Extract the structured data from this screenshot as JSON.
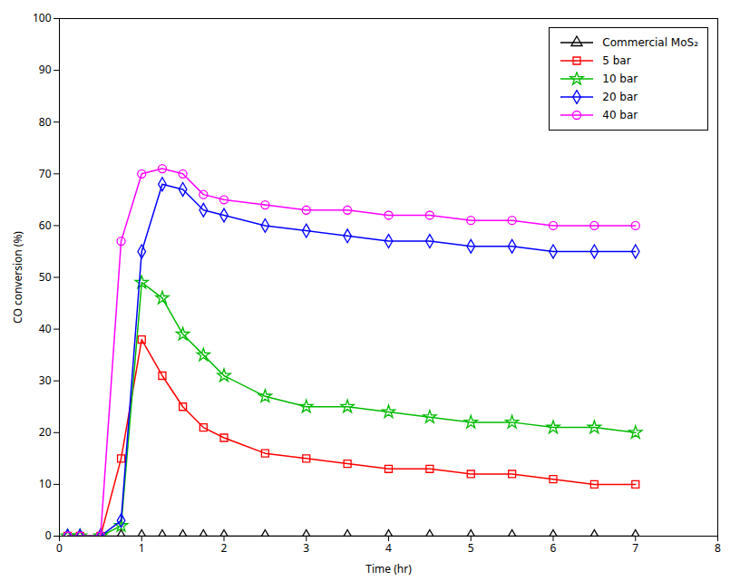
{
  "chart_data": {
    "type": "line",
    "xlabel": "Time (hr)",
    "ylabel": "CO conversion (%)",
    "xlim": [
      0,
      8
    ],
    "ylim": [
      0,
      100
    ],
    "xticks": [
      0,
      1,
      2,
      3,
      4,
      5,
      6,
      7,
      8
    ],
    "yticks": [
      0,
      10,
      20,
      30,
      40,
      50,
      60,
      70,
      80,
      90,
      100
    ],
    "grid": false,
    "legend": "upper right",
    "x": [
      0.1,
      0.25,
      0.5,
      0.75,
      1.0,
      1.25,
      1.5,
      1.75,
      2.0,
      2.5,
      3.0,
      3.5,
      4.0,
      4.5,
      5.0,
      5.5,
      6.0,
      6.5,
      7.0
    ],
    "series": [
      {
        "name": "Commercial MoS₂",
        "color": "#000000",
        "marker": "triangle",
        "values": [
          0,
          0,
          0,
          0,
          0,
          0,
          0,
          0,
          0,
          0,
          0,
          0,
          0,
          0,
          0,
          0,
          0,
          0,
          0
        ]
      },
      {
        "name": "5 bar",
        "color": "#ff0000",
        "marker": "square",
        "values": [
          0,
          0,
          0,
          15,
          38,
          31,
          25,
          21,
          19,
          16,
          15,
          14,
          13,
          13,
          12,
          12,
          11,
          10,
          10
        ]
      },
      {
        "name": "10 bar",
        "color": "#00bb00",
        "marker": "star",
        "values": [
          0,
          0,
          0,
          2,
          49,
          46,
          39,
          35,
          31,
          27,
          25,
          25,
          24,
          23,
          22,
          22,
          21,
          21,
          20
        ]
      },
      {
        "name": "20 bar",
        "color": "#0000ff",
        "marker": "diamond",
        "values": [
          0,
          0,
          0,
          3,
          55,
          68,
          67,
          63,
          62,
          60,
          59,
          58,
          57,
          57,
          56,
          56,
          55,
          55,
          55
        ]
      },
      {
        "name": "40 bar",
        "color": "#ff00ff",
        "marker": "circle",
        "values": [
          0,
          0,
          0,
          57,
          70,
          71,
          70,
          66,
          65,
          64,
          63,
          63,
          62,
          62,
          61,
          61,
          60,
          60,
          60
        ]
      }
    ]
  }
}
